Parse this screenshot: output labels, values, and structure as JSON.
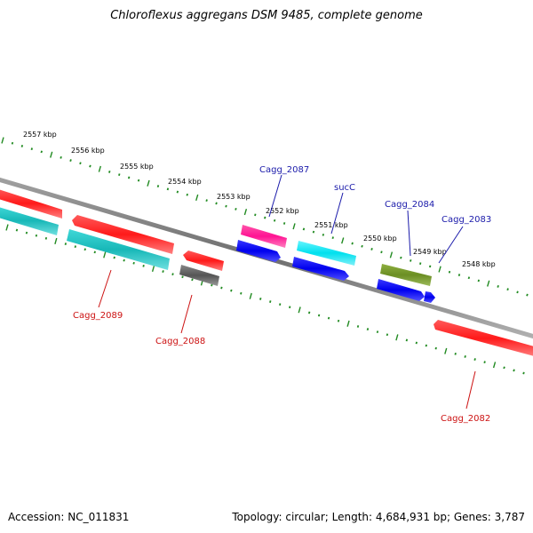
{
  "title": "Chloroflexus aggregans DSM 9485, complete genome",
  "footer": {
    "accession": "Accession: NC_011831",
    "summary": "Topology: circular; Length: 4,684,931 bp; Genes: 3,787"
  },
  "colors": {
    "backbone": "#808080",
    "tick": "#228b22",
    "label_top": "#1a1aaa",
    "label_bottom": "#cc1111",
    "red": "#ff1a1a",
    "cyan": "#20c0c0",
    "gray": "#666666",
    "pink": "#ff1493",
    "aqua": "#00e5ee",
    "blue": "#0000ee",
    "olive": "#6b8e23"
  },
  "ticks": [
    "2557 kbp",
    "2556 kbp",
    "2555 kbp",
    "2554 kbp",
    "2553 kbp",
    "2552 kbp",
    "2551 kbp",
    "2550 kbp",
    "2549 kbp",
    "2548 kbp"
  ],
  "gene_labels_top": [
    "Cagg_2087",
    "sucC",
    "Cagg_2084",
    "Cagg_2083"
  ],
  "gene_labels_bottom": [
    "Cagg_2089",
    "Cagg_2088",
    "Cagg_2082"
  ]
}
